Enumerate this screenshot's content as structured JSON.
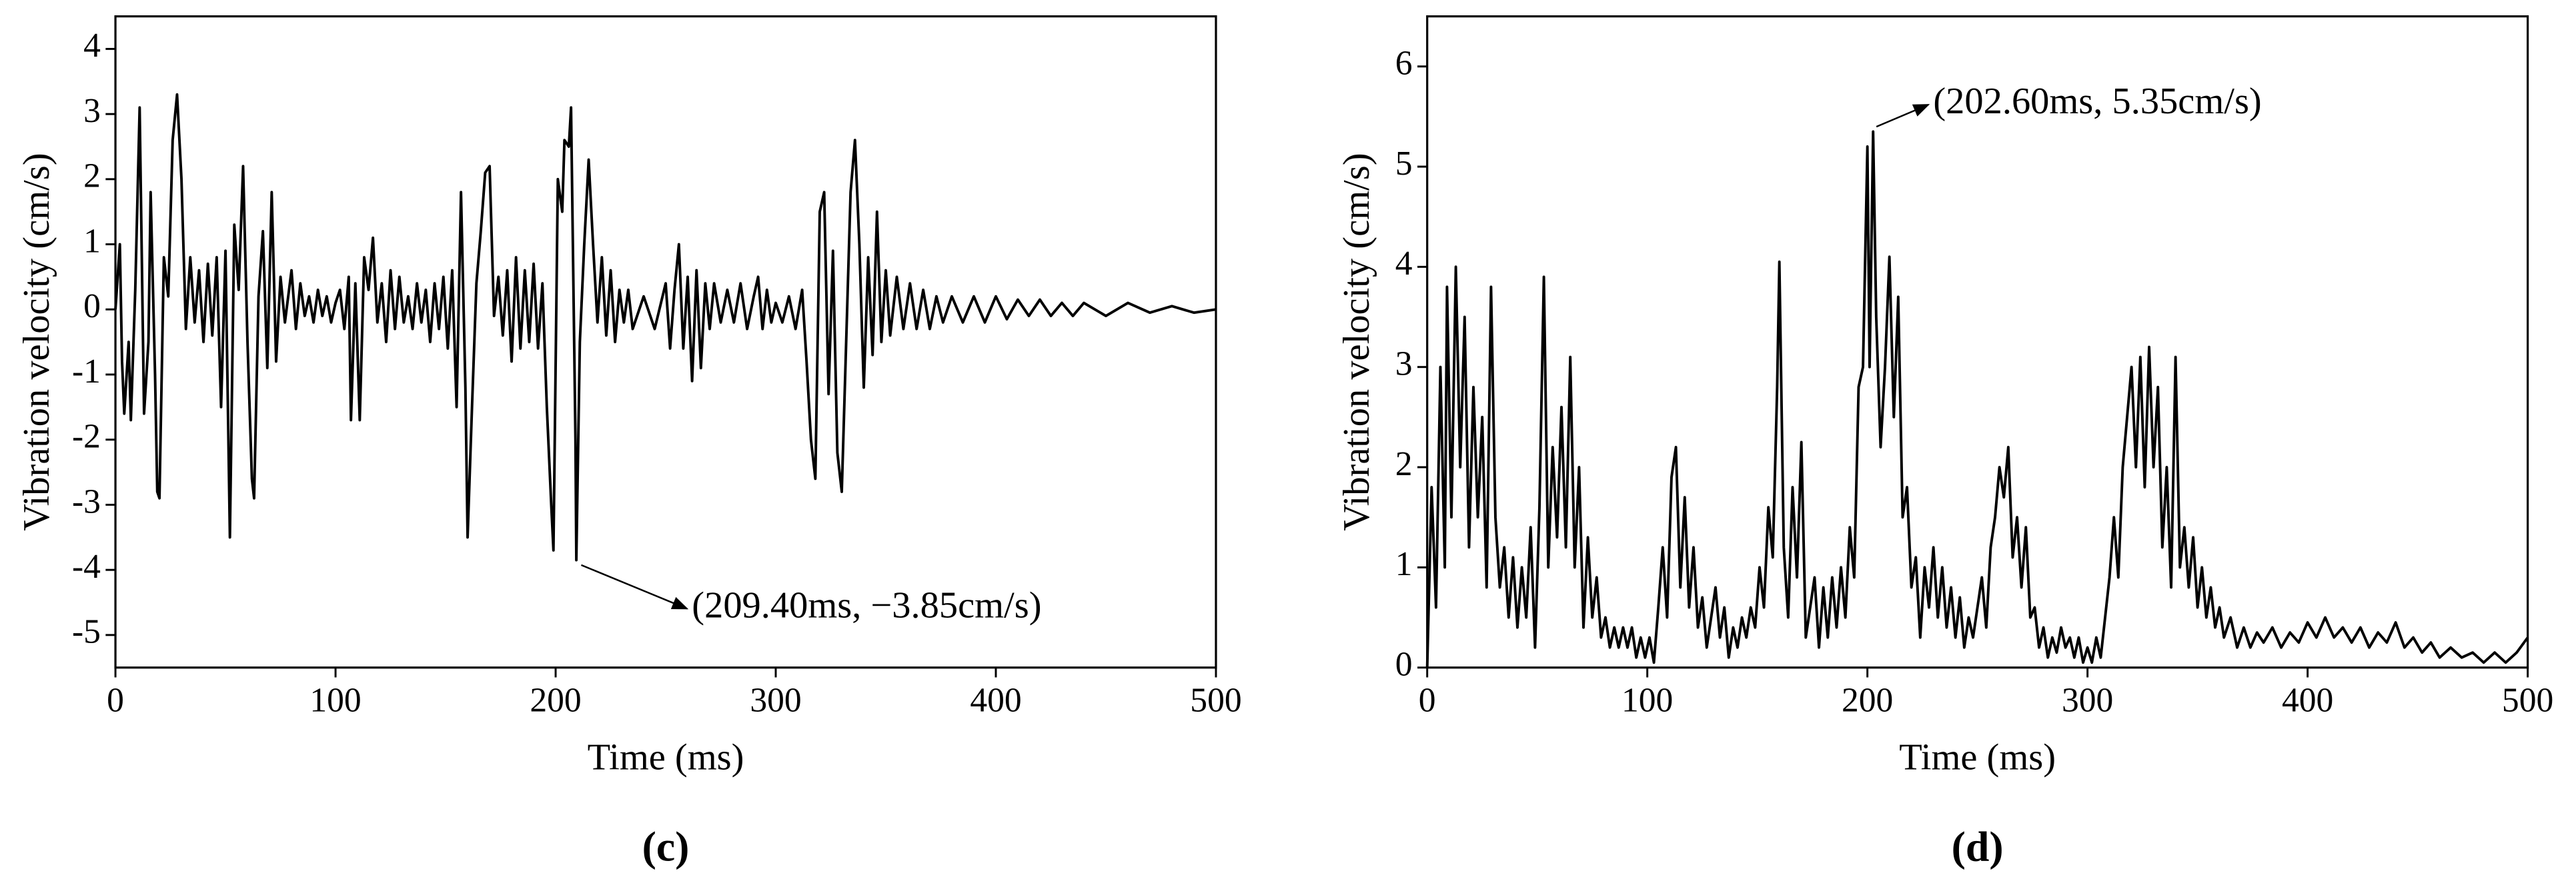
{
  "chart_data": [
    {
      "type": "line",
      "xlabel": "Time (ms)",
      "ylabel": "Vibration velocity (cm/s)",
      "caption": "(c)",
      "color": "#000000",
      "xlim": [
        0,
        500
      ],
      "ylim": [
        -5.5,
        4.5
      ],
      "xticks": [
        0,
        100,
        200,
        300,
        400,
        500
      ],
      "yticks": [
        -5,
        -4,
        -3,
        -2,
        -1,
        0,
        1,
        2,
        3,
        4
      ],
      "annotation": {
        "text": "(209.40ms, −3.85cm/s)",
        "x": 209.4,
        "y": -3.85
      },
      "x": [
        0,
        2,
        3,
        4,
        6,
        7,
        9,
        11,
        13,
        15,
        16,
        18,
        19,
        20,
        22,
        24,
        26,
        28,
        30,
        32,
        34,
        36,
        38,
        40,
        42,
        44,
        46,
        48,
        50,
        52,
        54,
        56,
        58,
        60,
        62,
        63,
        65,
        67,
        69,
        71,
        73,
        75,
        77,
        80,
        82,
        84,
        86,
        88,
        90,
        92,
        94,
        96,
        98,
        100,
        102,
        104,
        106,
        107,
        109,
        111,
        113,
        115,
        117,
        119,
        121,
        123,
        125,
        127,
        129,
        131,
        133,
        135,
        137,
        139,
        141,
        143,
        145,
        147,
        149,
        151,
        153,
        155,
        157,
        159,
        160,
        162,
        164,
        166,
        168,
        170,
        172,
        174,
        176,
        178,
        180,
        182,
        184,
        186,
        188,
        190,
        192,
        194,
        196,
        198,
        199,
        201,
        203,
        204,
        206,
        207,
        209,
        209.4,
        211,
        213,
        215,
        217,
        219,
        221,
        223,
        225,
        227,
        229,
        231,
        233,
        235,
        240,
        245,
        250,
        252,
        254,
        256,
        258,
        260,
        262,
        264,
        266,
        268,
        270,
        272,
        275,
        278,
        281,
        284,
        287,
        290,
        292,
        294,
        296,
        298,
        300,
        303,
        306,
        309,
        312,
        314,
        316,
        318,
        320,
        322,
        324,
        326,
        328,
        330,
        332,
        334,
        336,
        338,
        340,
        342,
        344,
        346,
        348,
        350,
        352,
        355,
        358,
        361,
        364,
        367,
        370,
        373,
        376,
        380,
        385,
        390,
        395,
        400,
        405,
        410,
        415,
        420,
        425,
        430,
        435,
        440,
        450,
        460,
        470,
        480,
        490,
        500
      ],
      "values": [
        0,
        1.0,
        -0.8,
        -1.6,
        -0.5,
        -1.7,
        0.3,
        3.1,
        -1.6,
        -0.5,
        1.8,
        -1.0,
        -2.8,
        -2.9,
        0.8,
        0.2,
        2.6,
        3.3,
        2.0,
        -0.3,
        0.8,
        -0.2,
        0.6,
        -0.5,
        0.7,
        -0.4,
        0.8,
        -1.5,
        0.9,
        -3.5,
        1.3,
        0.3,
        2.2,
        -0.5,
        -2.6,
        -2.9,
        0.2,
        1.2,
        -0.9,
        1.8,
        -0.8,
        0.5,
        -0.2,
        0.6,
        -0.3,
        0.4,
        -0.1,
        0.2,
        -0.2,
        0.3,
        -0.1,
        0.2,
        -0.2,
        0.1,
        0.3,
        -0.3,
        0.5,
        -1.7,
        0.4,
        -1.7,
        0.8,
        0.3,
        1.1,
        -0.2,
        0.4,
        -0.5,
        0.6,
        -0.3,
        0.5,
        -0.2,
        0.2,
        -0.3,
        0.4,
        -0.2,
        0.3,
        -0.5,
        0.4,
        -0.3,
        0.5,
        -0.6,
        0.6,
        -1.5,
        1.8,
        -1.2,
        -3.5,
        -1.5,
        0.4,
        1.2,
        2.1,
        2.2,
        -0.1,
        0.5,
        -0.4,
        0.6,
        -0.8,
        0.8,
        -0.6,
        0.6,
        -0.5,
        0.7,
        -0.6,
        0.4,
        -1.5,
        -3.0,
        -3.7,
        2.0,
        1.5,
        2.6,
        2.5,
        3.1,
        -2.0,
        -3.85,
        -0.5,
        1.0,
        2.3,
        1.0,
        -0.2,
        0.8,
        -0.4,
        0.6,
        -0.5,
        0.3,
        -0.2,
        0.3,
        -0.3,
        0.2,
        -0.3,
        0.4,
        -0.6,
        0.3,
        1.0,
        -0.6,
        0.5,
        -1.1,
        0.6,
        -0.9,
        0.4,
        -0.3,
        0.4,
        -0.2,
        0.3,
        -0.2,
        0.4,
        -0.3,
        0.2,
        0.5,
        -0.3,
        0.3,
        -0.2,
        0.1,
        -0.2,
        0.2,
        -0.3,
        0.3,
        -0.8,
        -2.0,
        -2.6,
        1.5,
        1.8,
        -1.3,
        0.9,
        -2.2,
        -2.8,
        -0.5,
        1.8,
        2.6,
        1.0,
        -1.2,
        0.8,
        -0.7,
        1.5,
        -0.5,
        0.6,
        -0.4,
        0.5,
        -0.3,
        0.4,
        -0.3,
        0.3,
        -0.3,
        0.2,
        -0.2,
        0.2,
        -0.2,
        0.2,
        -0.2,
        0.2,
        -0.15,
        0.15,
        -0.1,
        0.15,
        -0.1,
        0.1,
        -0.1,
        0.1,
        -0.1,
        0.1,
        -0.05,
        0.05,
        -0.05,
        0
      ]
    },
    {
      "type": "line",
      "xlabel": "Time (ms)",
      "ylabel": "Vibration velocity (cm/s)",
      "caption": "(d)",
      "color": "#000000",
      "xlim": [
        0,
        500
      ],
      "ylim": [
        0,
        6.5
      ],
      "xticks": [
        0,
        100,
        200,
        300,
        400,
        500
      ],
      "yticks": [
        0,
        1,
        2,
        3,
        4,
        5,
        6
      ],
      "annotation": {
        "text": "(202.60ms, 5.35cm/s)",
        "x": 202.6,
        "y": 5.35
      },
      "x": [
        0,
        2,
        4,
        6,
        8,
        9,
        11,
        13,
        15,
        17,
        19,
        21,
        23,
        25,
        27,
        29,
        31,
        33,
        35,
        37,
        39,
        41,
        43,
        45,
        47,
        49,
        51,
        53,
        55,
        57,
        59,
        61,
        63,
        65,
        67,
        69,
        71,
        73,
        75,
        77,
        79,
        81,
        83,
        85,
        87,
        89,
        91,
        93,
        95,
        97,
        99,
        101,
        103,
        105,
        107,
        109,
        111,
        113,
        115,
        117,
        119,
        121,
        123,
        125,
        127,
        129,
        131,
        133,
        135,
        137,
        139,
        141,
        143,
        145,
        147,
        149,
        151,
        153,
        155,
        157,
        159,
        160,
        162,
        164,
        166,
        168,
        170,
        172,
        174,
        176,
        178,
        180,
        182,
        184,
        186,
        188,
        190,
        192,
        194,
        196,
        198,
        200,
        201,
        202.6,
        204,
        206,
        208,
        210,
        212,
        214,
        216,
        218,
        220,
        222,
        224,
        226,
        228,
        230,
        232,
        234,
        236,
        238,
        240,
        242,
        244,
        246,
        248,
        250,
        252,
        254,
        256,
        258,
        260,
        262,
        264,
        266,
        268,
        270,
        272,
        274,
        276,
        278,
        280,
        282,
        284,
        286,
        288,
        290,
        292,
        294,
        296,
        298,
        300,
        302,
        304,
        306,
        308,
        310,
        312,
        314,
        316,
        318,
        320,
        322,
        324,
        326,
        328,
        330,
        332,
        334,
        336,
        338,
        340,
        342,
        344,
        346,
        348,
        350,
        352,
        354,
        356,
        358,
        360,
        362,
        365,
        368,
        371,
        374,
        377,
        380,
        384,
        388,
        392,
        396,
        400,
        404,
        408,
        412,
        416,
        420,
        424,
        428,
        432,
        436,
        440,
        444,
        448,
        452,
        456,
        460,
        465,
        470,
        475,
        480,
        485,
        490,
        495,
        500
      ],
      "values": [
        0,
        1.8,
        0.6,
        3.0,
        1.0,
        3.8,
        1.5,
        4.0,
        2.0,
        3.5,
        1.2,
        2.8,
        1.5,
        2.5,
        0.8,
        3.8,
        1.5,
        0.8,
        1.2,
        0.5,
        1.1,
        0.4,
        1.0,
        0.5,
        1.4,
        0.2,
        1.6,
        3.9,
        1.0,
        2.2,
        1.3,
        2.6,
        1.2,
        3.1,
        1.0,
        2.0,
        0.4,
        1.3,
        0.5,
        0.9,
        0.3,
        0.5,
        0.2,
        0.4,
        0.2,
        0.4,
        0.2,
        0.4,
        0.1,
        0.3,
        0.1,
        0.3,
        0.05,
        0.6,
        1.2,
        0.5,
        1.9,
        2.2,
        0.8,
        1.7,
        0.6,
        1.2,
        0.4,
        0.7,
        0.2,
        0.5,
        0.8,
        0.3,
        0.6,
        0.1,
        0.4,
        0.2,
        0.5,
        0.3,
        0.6,
        0.4,
        1.0,
        0.6,
        1.6,
        1.1,
        2.8,
        4.05,
        1.2,
        0.5,
        1.8,
        0.9,
        2.25,
        0.3,
        0.6,
        0.9,
        0.2,
        0.8,
        0.3,
        0.9,
        0.4,
        1.0,
        0.5,
        1.4,
        0.9,
        2.8,
        3.0,
        5.2,
        3.0,
        5.35,
        3.5,
        2.2,
        3.0,
        4.1,
        2.5,
        3.7,
        1.5,
        1.8,
        0.8,
        1.1,
        0.3,
        1.0,
        0.6,
        1.2,
        0.5,
        1.0,
        0.4,
        0.8,
        0.3,
        0.7,
        0.2,
        0.5,
        0.3,
        0.6,
        0.9,
        0.4,
        1.2,
        1.5,
        2.0,
        1.7,
        2.2,
        1.1,
        1.5,
        0.8,
        1.4,
        0.5,
        0.6,
        0.2,
        0.4,
        0.1,
        0.3,
        0.15,
        0.4,
        0.2,
        0.3,
        0.1,
        0.3,
        0.05,
        0.2,
        0.05,
        0.3,
        0.1,
        0.5,
        0.9,
        1.5,
        0.9,
        2.0,
        2.5,
        3.0,
        2.0,
        3.1,
        1.8,
        3.2,
        2.0,
        2.8,
        1.2,
        2.0,
        0.8,
        3.1,
        1.0,
        1.4,
        0.8,
        1.3,
        0.6,
        1.0,
        0.5,
        0.8,
        0.4,
        0.6,
        0.3,
        0.5,
        0.2,
        0.4,
        0.2,
        0.35,
        0.25,
        0.4,
        0.2,
        0.35,
        0.25,
        0.45,
        0.3,
        0.5,
        0.3,
        0.4,
        0.25,
        0.4,
        0.2,
        0.35,
        0.25,
        0.45,
        0.2,
        0.3,
        0.15,
        0.25,
        0.1,
        0.2,
        0.1,
        0.15,
        0.05,
        0.15,
        0.05,
        0.15,
        0.3
      ]
    }
  ]
}
